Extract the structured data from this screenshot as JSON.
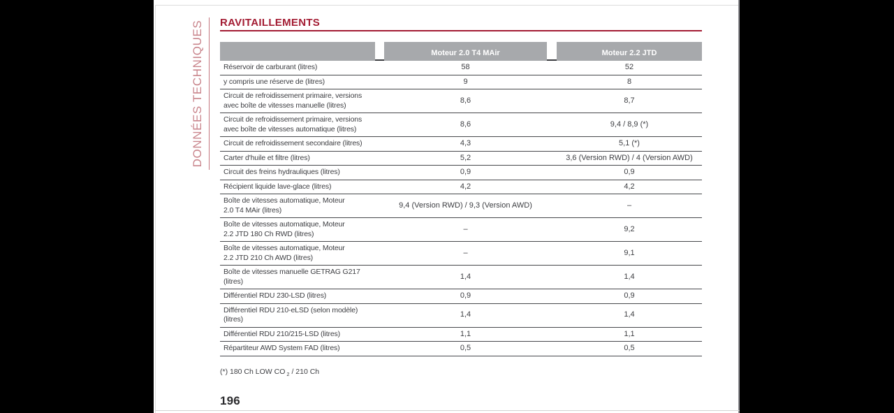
{
  "sidebar": {
    "section_label": "DONNÉES TECHNIQUES"
  },
  "header": {
    "title": "RAVITAILLEMENTS"
  },
  "table": {
    "columns": [
      "",
      "Moteur 2.0 T4 MAir",
      "Moteur 2.2 JTD"
    ],
    "rows": [
      {
        "label": "Réservoir de carburant (litres)",
        "mair": "58",
        "jtd": "52"
      },
      {
        "label": "y compris une réserve de (litres)",
        "mair": "9",
        "jtd": "8"
      },
      {
        "label": "Circuit de refroidissement primaire, versions\navec boîte de vitesses manuelle (litres)",
        "mair": "8,6",
        "jtd": "8,7"
      },
      {
        "label": "Circuit de refroidissement primaire, versions\navec boîte de vitesses automatique (litres)",
        "mair": "8,6",
        "jtd": "9,4 / 8,9 (*)"
      },
      {
        "label": "Circuit de refroidissement secondaire (litres)",
        "mair": "4,3",
        "jtd": "5,1 (*)"
      },
      {
        "label": "Carter d'huile et filtre (litres)",
        "mair": "5,2",
        "jtd": "3,6 (Version RWD) / 4 (Version AWD)"
      },
      {
        "label": "Circuit des freins hydrauliques (litres)",
        "mair": "0,9",
        "jtd": "0,9"
      },
      {
        "label": "Récipient liquide lave-glace (litres)",
        "mair": "4,2",
        "jtd": "4,2"
      },
      {
        "label": "Boîte de vitesses automatique, Moteur\n2.0 T4 MAir (litres)",
        "mair": "9,4 (Version RWD) / 9,3 (Version AWD)",
        "jtd": "–"
      },
      {
        "label": "Boîte de vitesses automatique, Moteur\n2.2 JTD 180 Ch RWD (litres)",
        "mair": "–",
        "jtd": "9,2"
      },
      {
        "label": "Boîte de vitesses automatique, Moteur\n2.2 JTD 210 Ch AWD (litres)",
        "mair": "–",
        "jtd": "9,1"
      },
      {
        "label": "Boîte de vitesses manuelle GETRAG G217\n(litres)",
        "mair": "1,4",
        "jtd": "1,4"
      },
      {
        "label": "Différentiel RDU 230-LSD (litres)",
        "mair": "0,9",
        "jtd": "0,9"
      },
      {
        "label": "Différentiel RDU 210-eLSD (selon modèle)\n(litres)",
        "mair": "1,4",
        "jtd": "1,4"
      },
      {
        "label": "Différentiel RDU 210/215-LSD (litres)",
        "mair": "1,1",
        "jtd": "1,1"
      },
      {
        "label": "Répartiteur AWD System FAD (litres)",
        "mair": "0,5",
        "jtd": "0,5"
      }
    ]
  },
  "footnote": {
    "pre": "(*) 180 Ch LOW CO",
    "sub": "2",
    "post": " / 210 Ch"
  },
  "footer": {
    "page_number": "196"
  },
  "colors": {
    "accent_red": "#a31c33",
    "sidebar_rose": "#c9858c",
    "header_gray": "#a7a9ac",
    "text_dark": "#3d3e42"
  }
}
